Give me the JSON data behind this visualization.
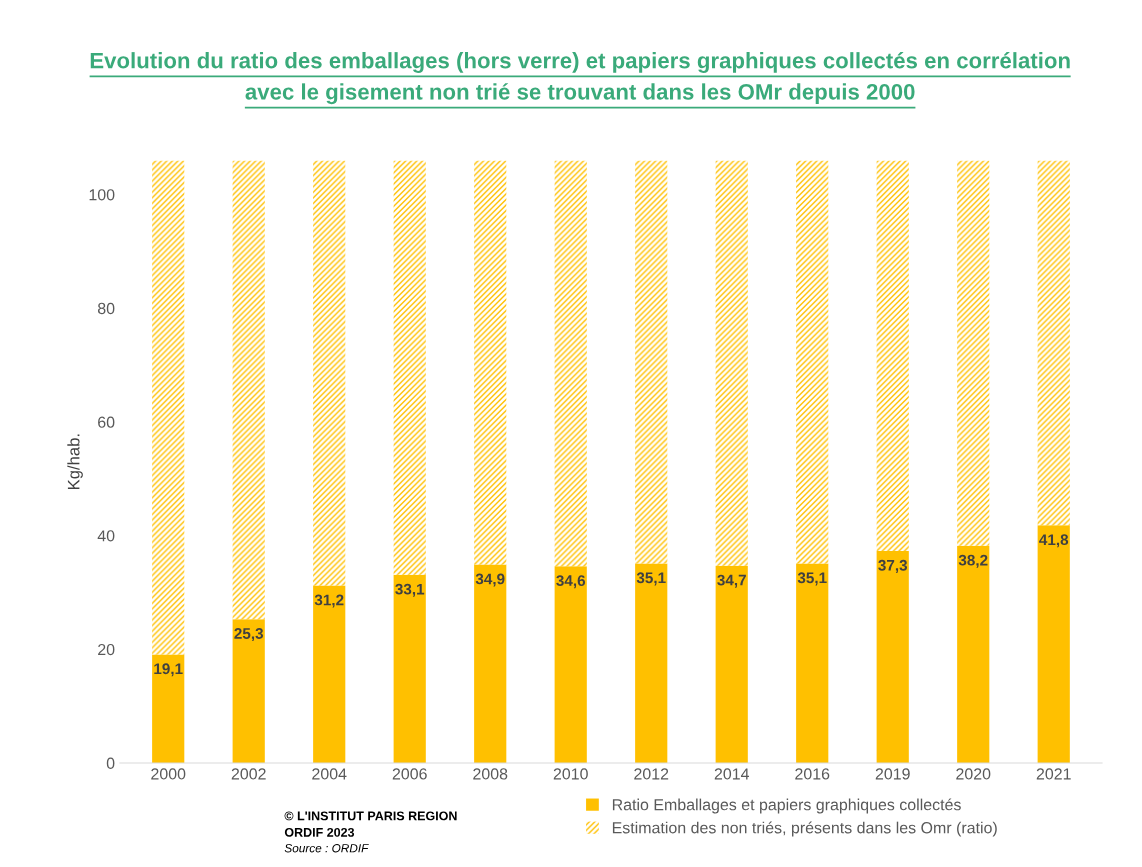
{
  "chart_data": {
    "type": "bar",
    "stacked": true,
    "title": "Evolution du ratio des emballages (hors verre) et papiers graphiques collectés en corrélation\navec le gisement non trié se trouvant dans les OMr depuis 2000",
    "ylabel": "Kg/hab.",
    "categories": [
      "2000",
      "2002",
      "2004",
      "2006",
      "2008",
      "2010",
      "2012",
      "2014",
      "2016",
      "2019",
      "2020",
      "2021"
    ],
    "series": [
      {
        "name": "Ratio Emballages et papiers graphiques collectés",
        "color": "#ffc000",
        "values": [
          19.1,
          25.3,
          31.2,
          33.1,
          34.9,
          34.6,
          35.1,
          34.7,
          35.1,
          37.3,
          38.2,
          41.8
        ],
        "value_labels": [
          "19,1",
          "25,3",
          "31,2",
          "33,1",
          "34,9",
          "34,6",
          "35,1",
          "34,7",
          "35,1",
          "37,3",
          "38,2",
          "41,8"
        ]
      },
      {
        "name": "Estimation des non triés, présents dans les Omr (ratio)",
        "color": "#ffc000",
        "values": [
          86.9,
          80.7,
          74.8,
          72.9,
          71.1,
          71.4,
          70.9,
          71.3,
          70.9,
          68.7,
          67.8,
          64.2
        ]
      }
    ],
    "ylim": [
      0,
      106
    ],
    "yticks": [
      0,
      20,
      40,
      60,
      80,
      100
    ],
    "grid": false,
    "legend": "bottom",
    "annotations": [
      "© L'INSTITUT PARIS REGION",
      "ORDIF 2023",
      "Source : ORDIF"
    ]
  }
}
